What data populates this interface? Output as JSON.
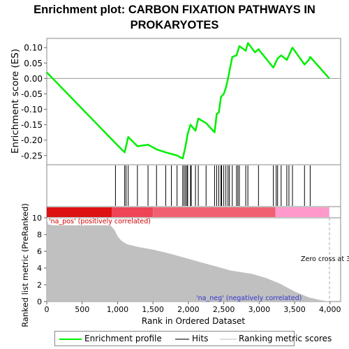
{
  "title_line1": "Enrichment plot: CARBON FIXATION PATHWAYS IN",
  "title_line2": "PROKARYOTES",
  "legend": {
    "profile": "Enrichment profile",
    "hits": "Hits",
    "ranking": "Ranking metric scores"
  },
  "colors": {
    "profile": "#00ee00",
    "hits": "#000000",
    "ranking_fill": "#c0c0c0",
    "pos_bar": "#dd1111",
    "neg_bar": "#ff99cc"
  },
  "chart_data": [
    {
      "type": "line",
      "name": "enrichment-profile",
      "title": "Enrichment plot: CARBON FIXATION PATHWAYS IN PROKARYOTES",
      "xlabel": "",
      "ylabel": "Enrichment score (ES)",
      "xlim": [
        0,
        4150
      ],
      "ylim": [
        -0.28,
        0.13
      ],
      "yticks": [
        -0.25,
        -0.2,
        -0.15,
        -0.1,
        -0.05,
        0.0,
        0.05,
        0.1
      ],
      "ytick_labels": [
        "-0.25",
        "-0.20",
        "-0.15",
        "-0.10",
        "-0.05",
        "0.00",
        "0.05",
        "0.10"
      ],
      "x": [
        0,
        970,
        1100,
        1150,
        1280,
        1430,
        1550,
        1680,
        1760,
        1840,
        1920,
        1960,
        1990,
        2030,
        2100,
        2140,
        2250,
        2370,
        2400,
        2430,
        2460,
        2500,
        2530,
        2560,
        2620,
        2680,
        2720,
        2810,
        2840,
        2940,
        2990,
        3200,
        3260,
        3310,
        3390,
        3420,
        3470,
        3640,
        3700,
        3720,
        3990
      ],
      "y": [
        0.02,
        -0.21,
        -0.24,
        -0.19,
        -0.22,
        -0.215,
        -0.23,
        -0.24,
        -0.245,
        -0.25,
        -0.26,
        -0.22,
        -0.18,
        -0.15,
        -0.17,
        -0.13,
        -0.145,
        -0.175,
        -0.115,
        -0.11,
        -0.06,
        -0.05,
        -0.03,
        0.0,
        0.07,
        0.075,
        0.105,
        0.09,
        0.115,
        0.085,
        0.095,
        0.035,
        0.065,
        0.075,
        0.06,
        0.075,
        0.1,
        0.045,
        0.06,
        0.07,
        0.0
      ]
    },
    {
      "type": "area",
      "name": "ranked-list-metric",
      "xlabel": "Rank in Ordered Dataset",
      "ylabel": "Ranked list metric (PreRanked)",
      "xlim": [
        0,
        4150
      ],
      "ylim": [
        0,
        10
      ],
      "xticks": [
        0,
        500,
        1000,
        1500,
        2000,
        2500,
        3000,
        3500,
        4000
      ],
      "xtick_labels": [
        "0",
        "500",
        "1,000",
        "1,500",
        "2,000",
        "2,500",
        "3,000",
        "3,500",
        "4,000"
      ],
      "yticks": [
        0,
        2,
        4,
        6,
        8,
        10
      ],
      "ytick_labels": [
        "0",
        "2",
        "4",
        "6",
        "8",
        "10"
      ],
      "x": [
        0,
        20,
        100,
        900,
        960,
        1000,
        1050,
        1100,
        1150,
        1300,
        1500,
        1700,
        2000,
        2300,
        2600,
        2900,
        3100,
        3300,
        3500,
        3700,
        3850,
        3950,
        3990
      ],
      "y": [
        10,
        9.2,
        9.1,
        9.1,
        8.5,
        7.8,
        7.3,
        7.0,
        6.8,
        6.5,
        6.2,
        5.8,
        5.1,
        4.4,
        3.7,
        3.3,
        2.8,
        2.1,
        1.2,
        0.5,
        0.2,
        0.05,
        0.0
      ],
      "annotations": [
        "'na_pos' (positively correlated)",
        "'na_neg' (negatively correlated)",
        "Zero cross at 3"
      ]
    },
    {
      "type": "scatter",
      "name": "hits",
      "x": [
        970,
        1100,
        1120,
        1150,
        1280,
        1430,
        1550,
        1680,
        1760,
        1840,
        1920,
        1940,
        1960,
        1980,
        1990,
        2030,
        2040,
        2100,
        2140,
        2250,
        2370,
        2400,
        2430,
        2460,
        2470,
        2500,
        2530,
        2560,
        2580,
        2620,
        2680,
        2700,
        2720,
        2810,
        2840,
        2990,
        3200,
        3240,
        3260,
        3310,
        3390,
        3420,
        3470,
        3640,
        3720
      ]
    }
  ]
}
